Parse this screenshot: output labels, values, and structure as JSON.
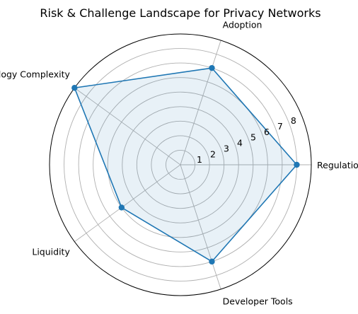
{
  "chart_data": {
    "type": "radar",
    "title": "Risk & Challenge Landscape for Privacy Networks",
    "categories": [
      "Regulation",
      "Adoption",
      "Technology Complexity",
      "Liquidity",
      "Developer Tools"
    ],
    "series": [
      {
        "values": [
          8,
          7,
          9,
          5,
          7
        ],
        "color": "#1f77b4",
        "fill_color": "#1f77b4",
        "fill_opacity": 0.1
      }
    ],
    "rlim": [
      0,
      9
    ],
    "rticks": [
      1,
      2,
      3,
      4,
      5,
      6,
      7,
      8
    ],
    "grid": true
  }
}
